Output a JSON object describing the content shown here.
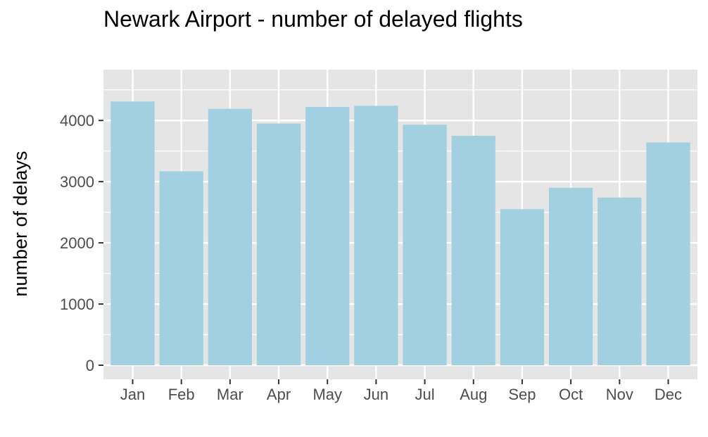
{
  "chart_data": {
    "type": "bar",
    "title": "Newark Airport - number of delayed flights",
    "xlabel": "",
    "ylabel": "number of delays",
    "categories": [
      "Jan",
      "Feb",
      "Mar",
      "Apr",
      "May",
      "Jun",
      "Jul",
      "Aug",
      "Sep",
      "Oct",
      "Nov",
      "Dec"
    ],
    "values": [
      4310,
      3170,
      4190,
      3950,
      4220,
      4240,
      3930,
      3750,
      2550,
      2900,
      2740,
      3640
    ],
    "yticks": [
      0,
      1000,
      2000,
      3000,
      4000
    ],
    "ylim": [
      -230,
      4830
    ],
    "grid": true,
    "legend": "none",
    "colors": {
      "bar": "#a1d0e1",
      "panel": "#e5e5e5",
      "grid": "#ffffff",
      "tick": "#333333",
      "tick_label": "#4d4d4d"
    }
  }
}
